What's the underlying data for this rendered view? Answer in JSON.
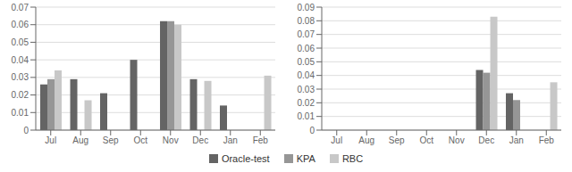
{
  "chart_data": [
    {
      "type": "bar",
      "categories": [
        "Jul",
        "Aug",
        "Sep",
        "Oct",
        "Nov",
        "Dec",
        "Jan",
        "Feb"
      ],
      "series": [
        {
          "name": "Oracle-test",
          "color": "#646464",
          "values": [
            0.026,
            0.029,
            0.021,
            0.04,
            0.062,
            0.029,
            0.014,
            0.0
          ]
        },
        {
          "name": "KPA",
          "color": "#969696",
          "values": [
            0.029,
            0.0,
            0.0,
            0.0,
            0.062,
            0.0,
            0.0,
            0.0
          ]
        },
        {
          "name": "RBC",
          "color": "#c8c8c8",
          "values": [
            0.034,
            0.017,
            0.0,
            0.0,
            0.06,
            0.028,
            0.0,
            0.031
          ]
        }
      ],
      "ylim": [
        0,
        0.07
      ],
      "yticks": [
        0,
        0.01,
        0.02,
        0.03,
        0.04,
        0.05,
        0.06,
        0.07
      ],
      "grid": true,
      "legend": "bottom"
    },
    {
      "type": "bar",
      "categories": [
        "Jul",
        "Aug",
        "Sep",
        "Oct",
        "Nov",
        "Dec",
        "Jan",
        "Feb"
      ],
      "series": [
        {
          "name": "Oracle-test",
          "color": "#646464",
          "values": [
            0.0,
            0.0,
            0.0,
            0.0,
            0.0,
            0.044,
            0.027,
            0.0
          ]
        },
        {
          "name": "KPA",
          "color": "#969696",
          "values": [
            0.0,
            0.0,
            0.0,
            0.0,
            0.0,
            0.042,
            0.022,
            0.0
          ]
        },
        {
          "name": "RBC",
          "color": "#c8c8c8",
          "values": [
            0.0,
            0.0,
            0.0,
            0.0,
            0.0,
            0.083,
            0.0,
            0.035
          ]
        }
      ],
      "ylim": [
        0,
        0.09
      ],
      "yticks": [
        0,
        0.01,
        0.02,
        0.03,
        0.04,
        0.05,
        0.06,
        0.07,
        0.08,
        0.09
      ],
      "grid": true,
      "legend": "bottom"
    }
  ]
}
